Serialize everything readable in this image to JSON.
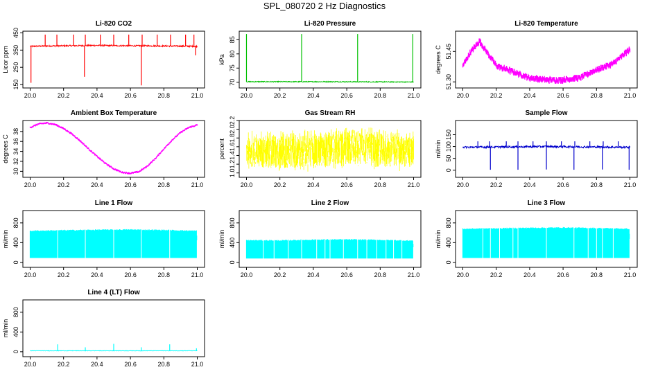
{
  "title": "SPL_080720  2 Hz Diagnostics",
  "chart_data": [
    {
      "type": "line",
      "title": "Li-820 CO2",
      "ylabel": "Licor ppm",
      "color": "#ff0000",
      "xlim": [
        20.0,
        21.0
      ],
      "ylim": [
        130,
        460
      ],
      "yticks": [
        150,
        250,
        350,
        450
      ],
      "xticks": [
        "20.0",
        "20.2",
        "20.4",
        "20.6",
        "20.8",
        "21.0"
      ],
      "series": [
        {
          "baseline": 375,
          "noise": 4,
          "x": [
            20.0,
            20.1,
            20.2,
            20.3,
            20.4,
            20.5,
            20.6,
            20.7,
            20.8,
            20.9,
            21.0
          ],
          "y": [
            372,
            374,
            375,
            376,
            377,
            376,
            375,
            375,
            374,
            373,
            372
          ],
          "spikes_up": [
            20.09,
            20.16,
            20.26,
            20.33,
            20.42,
            20.5,
            20.59,
            20.67,
            20.76,
            20.84,
            20.93,
            20.98
          ],
          "spike_up_value": 440,
          "spikes_down": [
            [
              20.005,
              160
            ],
            [
              20.325,
              195
            ],
            [
              20.665,
              145
            ],
            [
              20.99,
              320
            ]
          ]
        }
      ]
    },
    {
      "type": "line",
      "title": "Li-820 Pressure",
      "ylabel": "kPa",
      "color": "#00c000",
      "xlim": [
        20.0,
        21.0
      ],
      "ylim": [
        68,
        88
      ],
      "yticks": [
        70,
        75,
        80,
        85
      ],
      "xticks": [
        "20.0",
        "20.2",
        "20.4",
        "20.6",
        "20.8",
        "21.0"
      ],
      "series": [
        {
          "baseline": 70.2,
          "noise": 0.15,
          "x": [
            20.0,
            20.5,
            21.0
          ],
          "y": [
            70.2,
            70.2,
            70.1
          ],
          "spikes_up": [
            20.0,
            20.33,
            20.665,
            20.995
          ],
          "spike_up_value": 87,
          "spikes_down": []
        }
      ]
    },
    {
      "type": "line",
      "title": "Li-820 Temperature",
      "ylabel": "degrees C",
      "color": "#ff00ff",
      "xlim": [
        20.0,
        21.0
      ],
      "ylim": [
        51.27,
        51.55
      ],
      "yticks": [
        51.3,
        51.45
      ],
      "xticks": [
        "20.0",
        "20.2",
        "20.4",
        "20.6",
        "20.8",
        "21.0"
      ],
      "series": [
        {
          "band": 0.018,
          "x": [
            20.0,
            20.05,
            20.1,
            20.15,
            20.2,
            20.3,
            20.4,
            20.5,
            20.6,
            20.7,
            20.8,
            20.9,
            21.0
          ],
          "y": [
            51.38,
            51.45,
            51.5,
            51.44,
            51.38,
            51.35,
            51.32,
            51.31,
            51.31,
            51.32,
            51.36,
            51.39,
            51.46
          ]
        }
      ]
    },
    {
      "type": "line",
      "title": "Ambient Box Temperature",
      "ylabel": "degrees C",
      "color": "#ff00ff",
      "xlim": [
        20.0,
        21.0
      ],
      "ylim": [
        28.8,
        40.2
      ],
      "yticks": [
        30,
        32,
        34,
        36,
        38
      ],
      "xticks": [
        "20.0",
        "20.2",
        "20.4",
        "20.6",
        "20.8",
        "21.0"
      ],
      "series": [
        {
          "band": 0.25,
          "x": [
            20.0,
            20.05,
            20.1,
            20.15,
            20.2,
            20.25,
            20.3,
            20.35,
            20.4,
            20.45,
            20.5,
            20.55,
            20.6,
            20.65,
            20.7,
            20.75,
            20.8,
            20.85,
            20.9,
            20.95,
            21.0
          ],
          "y": [
            38.8,
            39.5,
            39.7,
            39.4,
            38.6,
            37.5,
            36.1,
            34.5,
            33.0,
            31.6,
            30.5,
            29.8,
            29.6,
            29.9,
            31.0,
            32.6,
            34.5,
            36.3,
            37.8,
            38.8,
            39.3
          ]
        }
      ]
    },
    {
      "type": "line",
      "title": "Gas Stream RH",
      "ylabel": "percent",
      "color": "#ffff00",
      "xlim": [
        20.0,
        21.0
      ],
      "ylim": [
        0.9,
        2.2
      ],
      "yticks": [
        1.0,
        1.2,
        1.4,
        1.6,
        1.8,
        2.0,
        2.2
      ],
      "xticks": [
        "20.0",
        "20.2",
        "20.4",
        "20.6",
        "20.8",
        "21.0"
      ],
      "series": [
        {
          "noise_fill": true,
          "x": [
            20.0,
            20.2,
            20.4,
            20.6,
            20.8,
            21.0
          ],
          "upper": [
            1.98,
            2.0,
            2.05,
            2.1,
            2.05,
            2.0
          ],
          "lower": [
            1.05,
            1.0,
            1.0,
            1.05,
            1.0,
            1.05
          ],
          "mid": [
            1.6,
            1.58,
            1.65,
            1.7,
            1.65,
            1.6
          ]
        }
      ]
    },
    {
      "type": "line",
      "title": "Sample Flow",
      "ylabel": "ml/min",
      "color": "#0000cc",
      "xlim": [
        20.0,
        21.0
      ],
      "ylim": [
        -30,
        210
      ],
      "yticks": [
        0,
        50,
        100,
        150
      ],
      "xticks": [
        "20.0",
        "20.2",
        "20.4",
        "20.6",
        "20.8",
        "21.0"
      ],
      "series": [
        {
          "baseline": 97,
          "noise": 4,
          "x": [
            20.0,
            20.5,
            21.0
          ],
          "y": [
            97,
            100,
            97
          ],
          "spikes_up": [
            20.09,
            20.16,
            20.26,
            20.33,
            20.42,
            20.5,
            20.59,
            20.67,
            20.76,
            20.84,
            20.93
          ],
          "spike_up_value": 122,
          "spikes_down": [
            [
              20.165,
              2
            ],
            [
              20.33,
              2
            ],
            [
              20.5,
              3
            ],
            [
              20.665,
              2
            ],
            [
              20.835,
              3
            ],
            [
              20.995,
              2
            ]
          ]
        }
      ]
    },
    {
      "type": "area",
      "title": "Line 1 Flow",
      "ylabel": "ml/min",
      "color": "#00ffff",
      "xlim": [
        20.0,
        21.0
      ],
      "ylim": [
        -100,
        1050
      ],
      "yticks": [
        0,
        400,
        800
      ],
      "xticks": [
        "20.0",
        "20.2",
        "20.4",
        "20.6",
        "20.8",
        "21.0"
      ],
      "series": [
        {
          "x": [
            20.0,
            20.2,
            20.4,
            20.6,
            20.8,
            21.0
          ],
          "upper": [
            640,
            650,
            660,
            665,
            655,
            640
          ],
          "lower": [
            90,
            90,
            90,
            90,
            90,
            90
          ],
          "gaps": [
            20.165,
            20.33,
            20.5,
            20.665,
            20.835
          ]
        }
      ]
    },
    {
      "type": "area",
      "title": "Line 2 Flow",
      "ylabel": "ml/min",
      "color": "#00ffff",
      "xlim": [
        20.0,
        21.0
      ],
      "ylim": [
        -100,
        1050
      ],
      "yticks": [
        0,
        400,
        800
      ],
      "xticks": [
        "20.0",
        "20.2",
        "20.4",
        "20.6",
        "20.8",
        "21.0"
      ],
      "series": [
        {
          "x": [
            20.0,
            20.2,
            20.4,
            20.6,
            20.8,
            21.0
          ],
          "upper": [
            450,
            445,
            460,
            465,
            455,
            440
          ],
          "lower": [
            80,
            80,
            80,
            80,
            80,
            80
          ],
          "gaps": [
            20.1,
            20.165,
            20.25,
            20.33,
            20.42,
            20.47,
            20.5,
            20.58,
            20.665,
            20.72,
            20.78,
            20.835,
            20.88,
            20.93
          ]
        }
      ]
    },
    {
      "type": "area",
      "title": "Line 3 Flow",
      "ylabel": "ml/min",
      "color": "#00ffff",
      "xlim": [
        20.0,
        21.0
      ],
      "ylim": [
        -100,
        1050
      ],
      "yticks": [
        0,
        400,
        800
      ],
      "xticks": [
        "20.0",
        "20.2",
        "20.4",
        "20.6",
        "20.8",
        "21.0"
      ],
      "series": [
        {
          "x": [
            20.0,
            20.2,
            20.4,
            20.6,
            20.8,
            21.0
          ],
          "upper": [
            680,
            690,
            700,
            705,
            695,
            680
          ],
          "lower": [
            90,
            90,
            90,
            90,
            90,
            90
          ],
          "gaps": [
            20.12,
            20.165,
            20.22,
            20.3,
            20.33,
            20.5,
            20.665,
            20.75,
            20.8,
            20.835,
            20.9
          ]
        }
      ]
    },
    {
      "type": "line",
      "title": "Line 4 (LT) Flow",
      "ylabel": "ml/min",
      "color": "#00ffff",
      "xlim": [
        20.0,
        21.0
      ],
      "ylim": [
        -100,
        1050
      ],
      "yticks": [
        0,
        400,
        800
      ],
      "xticks": [
        "20.0",
        "20.2",
        "20.4",
        "20.6",
        "20.8",
        "21.0"
      ],
      "series": [
        {
          "baseline": 20,
          "noise": 4,
          "x": [
            20.0,
            21.0
          ],
          "y": [
            20,
            20
          ],
          "spikes_up": [
            [
              20.165,
              150
            ],
            [
              20.33,
              90
            ],
            [
              20.5,
              160
            ],
            [
              20.665,
              90
            ],
            [
              20.835,
              150
            ],
            [
              20.995,
              70
            ]
          ],
          "spikes_down": []
        }
      ]
    }
  ]
}
